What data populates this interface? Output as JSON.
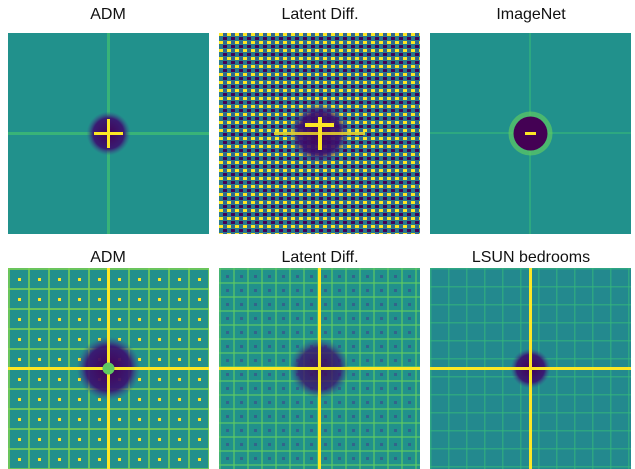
{
  "panels": [
    {
      "title": "ADM"
    },
    {
      "title": "Latent Diff."
    },
    {
      "title": "ImageNet"
    },
    {
      "title": "ADM"
    },
    {
      "title": "Latent Diff."
    },
    {
      "title": "LSUN bedrooms"
    }
  ]
}
